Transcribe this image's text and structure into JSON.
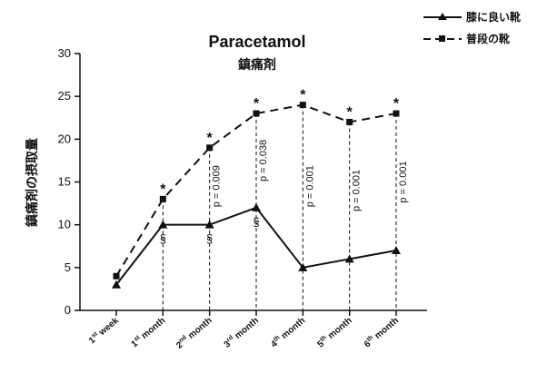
{
  "chart_data": {
    "type": "line",
    "title": "Paracetamol",
    "subtitle": "鎮痛剤",
    "xlabel": "",
    "ylabel": "鎮痛剤の摂取量",
    "ylim": [
      0,
      30
    ],
    "yticks": [
      0,
      5,
      10,
      15,
      20,
      25,
      30
    ],
    "grid": false,
    "legend_position": "top-right",
    "categories": [
      "1st week",
      "1st month",
      "2nd month",
      "3rd month",
      "4th month",
      "5th month",
      "6th month"
    ],
    "category_parts": [
      {
        "num": "1",
        "sup": "st",
        "word": "week"
      },
      {
        "num": "1",
        "sup": "st",
        "word": "month"
      },
      {
        "num": "2",
        "sup": "nd",
        "word": "month"
      },
      {
        "num": "3",
        "sup": "rd",
        "word": "month"
      },
      {
        "num": "4",
        "sup": "th",
        "word": "month"
      },
      {
        "num": "5",
        "sup": "th",
        "word": "month"
      },
      {
        "num": "6",
        "sup": "th",
        "word": "month"
      }
    ],
    "series": [
      {
        "name": "膝に良い靴",
        "style": "solid",
        "marker": "triangle",
        "values": [
          3,
          10,
          10,
          12,
          5,
          6,
          7
        ]
      },
      {
        "name": "普段の靴",
        "style": "dashed",
        "marker": "square",
        "values": [
          4,
          13,
          19,
          23,
          24,
          22,
          23
        ]
      }
    ],
    "significance_stars": [
      1,
      2,
      3,
      4,
      5,
      6
    ],
    "section_marks": [
      1,
      2,
      3
    ],
    "section_symbol": "§",
    "star_symbol": "*",
    "p_values": [
      {
        "index": 2,
        "label": "p = 0.009"
      },
      {
        "index": 3,
        "label": "p = 0.038"
      },
      {
        "index": 4,
        "label": "p = 0.001"
      },
      {
        "index": 5,
        "label": "p = 0.001"
      },
      {
        "index": 6,
        "label": "p = 0.001"
      }
    ],
    "colors": {
      "line": "#111111",
      "background": "#ffffff"
    }
  }
}
